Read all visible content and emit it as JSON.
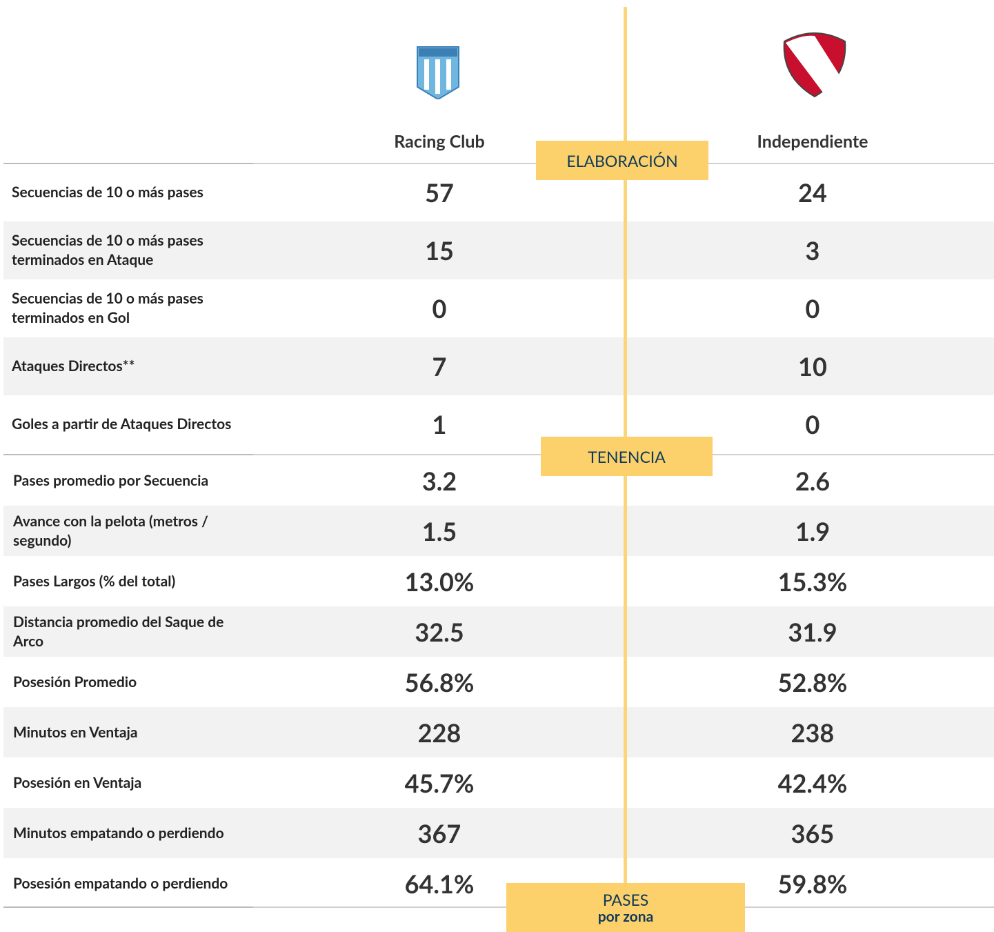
{
  "header": {
    "teams": [
      "Racing Club",
      "Independiente"
    ]
  },
  "sections": [
    {
      "title": "ELABORACIÓN",
      "rows": [
        {
          "label": "Secuencias de 10 o más pases",
          "values": [
            "57",
            "24"
          ]
        },
        {
          "label": "Secuencias de 10 o más pases terminados en Ataque",
          "values": [
            "15",
            "3"
          ]
        },
        {
          "label": "Secuencias de 10 o más pases terminados en Gol",
          "values": [
            "0",
            "0"
          ]
        },
        {
          "label": "Ataques Directos**",
          "values": [
            "7",
            "10"
          ]
        },
        {
          "label": "Goles a partir de Ataques Directos",
          "values": [
            "1",
            "0"
          ]
        }
      ]
    },
    {
      "title": "TENENCIA",
      "rows": [
        {
          "label": "Pases promedio por Secuencia",
          "values": [
            "3.2",
            "2.6"
          ]
        },
        {
          "label": "Avance con la pelota (metros / segundo)",
          "values": [
            "1.5",
            "1.9"
          ]
        },
        {
          "label": "Pases Largos (% del total)",
          "values": [
            "13.0%",
            "15.3%"
          ]
        },
        {
          "label": "Distancia promedio del Saque de Arco",
          "values": [
            "32.5",
            "31.9"
          ]
        },
        {
          "label": "Posesión Promedio",
          "values": [
            "56.8%",
            "52.8%"
          ]
        },
        {
          "label": "Minutos en Ventaja",
          "values": [
            "228",
            "238"
          ]
        },
        {
          "label": "Posesión en Ventaja",
          "values": [
            "45.7%",
            "42.4%"
          ]
        },
        {
          "label": "Minutos empatando o perdiendo",
          "values": [
            "367",
            "365"
          ]
        },
        {
          "label": "Posesión empatando o perdiendo",
          "values": [
            "64.1%",
            "59.8%"
          ]
        }
      ]
    },
    {
      "title": "PASES",
      "subtitle": "por zona"
    }
  ]
}
